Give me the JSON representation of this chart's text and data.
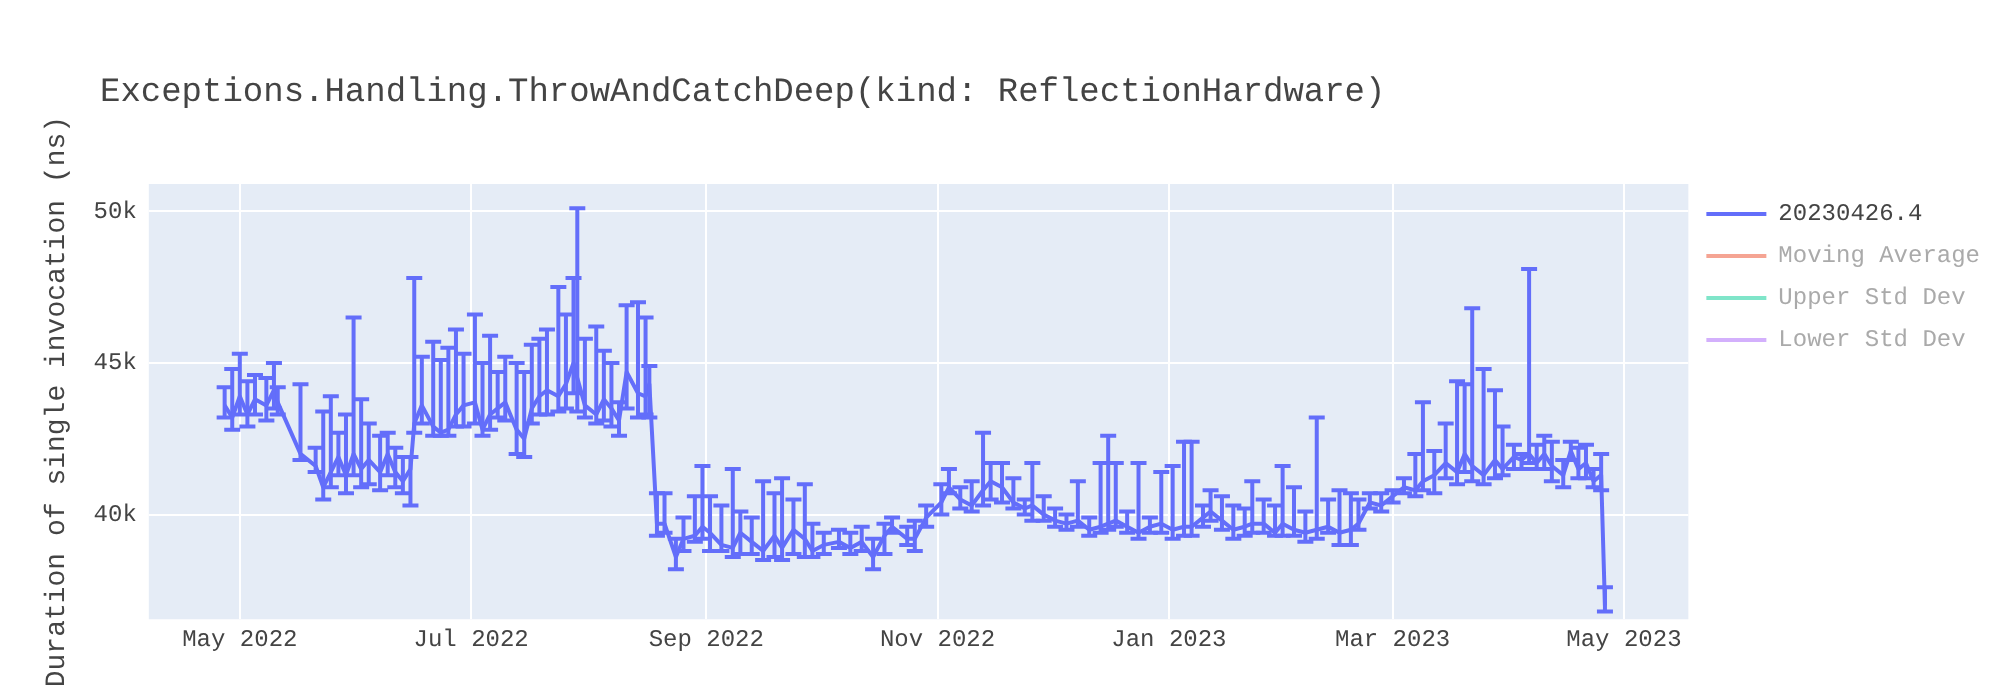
{
  "chart_data": {
    "type": "line",
    "title": "Exceptions.Handling.ThrowAndCatchDeep(kind: ReflectionHardware)",
    "ylabel": "Duration of single invocation (ns)",
    "xlim": [
      "2022-04-07",
      "2023-05-18"
    ],
    "ylim": [
      36550,
      50900
    ],
    "xticks": [
      {
        "value": "2022-05-01",
        "label": "May 2022"
      },
      {
        "value": "2022-07-01",
        "label": "Jul 2022"
      },
      {
        "value": "2022-09-01",
        "label": "Sep 2022"
      },
      {
        "value": "2022-11-01",
        "label": "Nov 2022"
      },
      {
        "value": "2023-01-01",
        "label": "Jan 2023"
      },
      {
        "value": "2023-03-01",
        "label": "Mar 2023"
      },
      {
        "value": "2023-05-01",
        "label": "May 2023"
      }
    ],
    "yticks": [
      {
        "value": 40000,
        "label": "40k"
      },
      {
        "value": 45000,
        "label": "45k"
      },
      {
        "value": 50000,
        "label": "50k"
      }
    ],
    "grid": true,
    "legend": "top right",
    "marker": "none",
    "line_style": "solid",
    "series": [
      {
        "name": "20230426.4",
        "color": "#636efa",
        "x": [
          "2022-04-27",
          "2022-04-29",
          "2022-05-01",
          "2022-05-03",
          "2022-05-05",
          "2022-05-08",
          "2022-05-10",
          "2022-05-11",
          "2022-05-17",
          "2022-05-21",
          "2022-05-23",
          "2022-05-25",
          "2022-05-27",
          "2022-05-29",
          "2022-05-31",
          "2022-06-02",
          "2022-06-04",
          "2022-06-07",
          "2022-06-09",
          "2022-06-11",
          "2022-06-13",
          "2022-06-15",
          "2022-06-16",
          "2022-06-18",
          "2022-06-21",
          "2022-06-23",
          "2022-06-25",
          "2022-06-27",
          "2022-06-29",
          "2022-07-02",
          "2022-07-04",
          "2022-07-06",
          "2022-07-08",
          "2022-07-10",
          "2022-07-13",
          "2022-07-15",
          "2022-07-17",
          "2022-07-19",
          "2022-07-21",
          "2022-07-24",
          "2022-07-26",
          "2022-07-28",
          "2022-07-29",
          "2022-07-31",
          "2022-08-03",
          "2022-08-05",
          "2022-08-07",
          "2022-08-09",
          "2022-08-11",
          "2022-08-14",
          "2022-08-16",
          "2022-08-17",
          "2022-08-19",
          "2022-08-21",
          "2022-08-24",
          "2022-08-26",
          "2022-08-29",
          "2022-08-31",
          "2022-09-02",
          "2022-09-05",
          "2022-09-08",
          "2022-09-10",
          "2022-09-13",
          "2022-09-16",
          "2022-09-19",
          "2022-09-21",
          "2022-09-24",
          "2022-09-27",
          "2022-09-29",
          "2022-10-02",
          "2022-10-06",
          "2022-10-09",
          "2022-10-12",
          "2022-10-15",
          "2022-10-18",
          "2022-10-20",
          "2022-10-24",
          "2022-10-26",
          "2022-10-29",
          "2022-11-02",
          "2022-11-04",
          "2022-11-07",
          "2022-11-10",
          "2022-11-13",
          "2022-11-15",
          "2022-11-18",
          "2022-11-21",
          "2022-11-24",
          "2022-11-26",
          "2022-11-29",
          "2022-12-02",
          "2022-12-05",
          "2022-12-08",
          "2022-12-11",
          "2022-12-14",
          "2022-12-16",
          "2022-12-18",
          "2022-12-21",
          "2022-12-24",
          "2022-12-27",
          "2022-12-30",
          "2023-01-02",
          "2023-01-05",
          "2023-01-07",
          "2023-01-10",
          "2023-01-12",
          "2023-01-15",
          "2023-01-18",
          "2023-01-21",
          "2023-01-23",
          "2023-01-26",
          "2023-01-29",
          "2023-01-31",
          "2023-02-03",
          "2023-02-06",
          "2023-02-09",
          "2023-02-12",
          "2023-02-15",
          "2023-02-18",
          "2023-02-20",
          "2023-02-23",
          "2023-02-26",
          "2023-03-01",
          "2023-03-04",
          "2023-03-07",
          "2023-03-09",
          "2023-03-12",
          "2023-03-15",
          "2023-03-18",
          "2023-03-20",
          "2023-03-22",
          "2023-03-25",
          "2023-03-28",
          "2023-03-30",
          "2023-04-02",
          "2023-04-04",
          "2023-04-06",
          "2023-04-08",
          "2023-04-10",
          "2023-04-12",
          "2023-04-15",
          "2023-04-17",
          "2023-04-19",
          "2023-04-21",
          "2023-04-23",
          "2023-04-25",
          "2023-04-26"
        ],
        "values": [
          43600,
          43200,
          43900,
          43300,
          43800,
          43600,
          44100,
          43700,
          42000,
          41600,
          40900,
          41400,
          41900,
          41300,
          42000,
          41500,
          41800,
          41400,
          42000,
          41400,
          41100,
          41500,
          43000,
          43600,
          42900,
          42700,
          42800,
          43300,
          43600,
          43700,
          42800,
          43300,
          43500,
          43700,
          42800,
          42500,
          43500,
          43900,
          44100,
          43900,
          44300,
          45000,
          44500,
          43600,
          43300,
          43800,
          43500,
          43100,
          44700,
          44000,
          43900,
          44300,
          39700,
          39700,
          38600,
          39200,
          39300,
          39600,
          39400,
          39000,
          38900,
          39400,
          39100,
          38800,
          39300,
          38900,
          39500,
          39200,
          38800,
          39000,
          39100,
          38900,
          39100,
          38600,
          39300,
          39600,
          39200,
          39200,
          39900,
          40400,
          40900,
          40500,
          40300,
          40800,
          41100,
          40900,
          40400,
          40200,
          40300,
          40000,
          39800,
          39700,
          39800,
          39500,
          39600,
          39700,
          39800,
          39600,
          39400,
          39600,
          39700,
          39500,
          39600,
          39600,
          39900,
          40100,
          39800,
          39500,
          39600,
          39700,
          39700,
          39400,
          39700,
          39500,
          39400,
          39500,
          39600,
          39400,
          39500,
          39700,
          40400,
          40300,
          40600,
          40900,
          40800,
          41100,
          41300,
          41700,
          41400,
          42000,
          41600,
          41300,
          41800,
          41500,
          41900,
          41800,
          42000,
          41700,
          42000,
          41600,
          41300,
          42100,
          41500,
          41700,
          41100,
          41300,
          37000
        ],
        "errors": [
          [
            43200,
            44200
          ],
          [
            42800,
            44800
          ],
          [
            43300,
            45300
          ],
          [
            42900,
            44400
          ],
          [
            43300,
            44600
          ],
          [
            43100,
            44500
          ],
          [
            43500,
            45000
          ],
          [
            43300,
            44200
          ],
          [
            41800,
            44300
          ],
          [
            41400,
            42200
          ],
          [
            40500,
            43400
          ],
          [
            40900,
            43900
          ],
          [
            41300,
            42700
          ],
          [
            40700,
            43300
          ],
          [
            41300,
            46500
          ],
          [
            40900,
            43800
          ],
          [
            41000,
            43000
          ],
          [
            40800,
            42600
          ],
          [
            41300,
            42700
          ],
          [
            40900,
            42200
          ],
          [
            40700,
            41900
          ],
          [
            40300,
            41900
          ],
          [
            42700,
            47800
          ],
          [
            43000,
            45200
          ],
          [
            42600,
            45700
          ],
          [
            42600,
            45100
          ],
          [
            42600,
            45500
          ],
          [
            42900,
            46100
          ],
          [
            42900,
            45300
          ],
          [
            43000,
            46600
          ],
          [
            42600,
            45000
          ],
          [
            42800,
            45900
          ],
          [
            43200,
            44700
          ],
          [
            43100,
            45200
          ],
          [
            42000,
            45000
          ],
          [
            41900,
            44700
          ],
          [
            43000,
            45600
          ],
          [
            43300,
            45800
          ],
          [
            43300,
            46100
          ],
          [
            43400,
            47500
          ],
          [
            43500,
            46600
          ],
          [
            44000,
            47800
          ],
          [
            43400,
            50100
          ],
          [
            43200,
            45800
          ],
          [
            43000,
            46200
          ],
          [
            43100,
            45400
          ],
          [
            42900,
            45000
          ],
          [
            42600,
            43700
          ],
          [
            43500,
            46900
          ],
          [
            43200,
            47000
          ],
          [
            43300,
            46500
          ],
          [
            43200,
            44900
          ],
          [
            39300,
            40700
          ],
          [
            39400,
            40700
          ],
          [
            38200,
            39200
          ],
          [
            38800,
            39900
          ],
          [
            39100,
            40600
          ],
          [
            39200,
            41600
          ],
          [
            38800,
            40600
          ],
          [
            38800,
            40300
          ],
          [
            38600,
            41500
          ],
          [
            38700,
            40100
          ],
          [
            38700,
            39900
          ],
          [
            38500,
            41100
          ],
          [
            38600,
            40700
          ],
          [
            38500,
            41200
          ],
          [
            38700,
            40500
          ],
          [
            38600,
            41000
          ],
          [
            38600,
            39700
          ],
          [
            38700,
            39400
          ],
          [
            38900,
            39500
          ],
          [
            38700,
            39400
          ],
          [
            38800,
            39600
          ],
          [
            38200,
            39200
          ],
          [
            38700,
            39700
          ],
          [
            39400,
            39900
          ],
          [
            39000,
            39600
          ],
          [
            38800,
            39800
          ],
          [
            39600,
            40300
          ],
          [
            40000,
            41000
          ],
          [
            40700,
            41500
          ],
          [
            40200,
            40900
          ],
          [
            40100,
            41100
          ],
          [
            40300,
            42700
          ],
          [
            40500,
            41700
          ],
          [
            40400,
            41700
          ],
          [
            40200,
            41200
          ],
          [
            40000,
            40500
          ],
          [
            39800,
            41700
          ],
          [
            39800,
            40600
          ],
          [
            39600,
            40200
          ],
          [
            39500,
            40000
          ],
          [
            39600,
            41100
          ],
          [
            39300,
            39900
          ],
          [
            39400,
            41700
          ],
          [
            39500,
            42600
          ],
          [
            39600,
            41700
          ],
          [
            39400,
            40100
          ],
          [
            39200,
            41700
          ],
          [
            39400,
            39900
          ],
          [
            39400,
            41400
          ],
          [
            39200,
            41600
          ],
          [
            39300,
            42400
          ],
          [
            39300,
            42400
          ],
          [
            39600,
            40300
          ],
          [
            39800,
            40800
          ],
          [
            39500,
            40600
          ],
          [
            39200,
            40300
          ],
          [
            39300,
            40200
          ],
          [
            39400,
            41100
          ],
          [
            39400,
            40500
          ],
          [
            39300,
            40300
          ],
          [
            39300,
            41600
          ],
          [
            39300,
            40900
          ],
          [
            39100,
            40100
          ],
          [
            39200,
            43200
          ],
          [
            39400,
            40500
          ],
          [
            39000,
            40800
          ],
          [
            39000,
            40700
          ],
          [
            39500,
            40500
          ],
          [
            40200,
            40700
          ],
          [
            40100,
            40700
          ],
          [
            40400,
            40800
          ],
          [
            40700,
            41200
          ],
          [
            40600,
            42000
          ],
          [
            40800,
            43700
          ],
          [
            40700,
            42100
          ],
          [
            41200,
            43000
          ],
          [
            41000,
            44400
          ],
          [
            41400,
            44300
          ],
          [
            41100,
            46800
          ],
          [
            41000,
            44800
          ],
          [
            41200,
            44100
          ],
          [
            41300,
            42900
          ],
          [
            41500,
            42300
          ],
          [
            41500,
            42000
          ],
          [
            41700,
            48100
          ],
          [
            41500,
            42300
          ],
          [
            41500,
            42600
          ],
          [
            41100,
            42400
          ],
          [
            40900,
            41800
          ],
          [
            41800,
            42400
          ],
          [
            41200,
            42200
          ],
          [
            41200,
            42300
          ],
          [
            40900,
            41500
          ],
          [
            40800,
            42000
          ],
          [
            36800,
            37600
          ]
        ]
      },
      {
        "name": "Moving Average",
        "color": "#f5a493"
      },
      {
        "name": "Upper Std Dev",
        "color": "#7fe5c9"
      },
      {
        "name": "Lower Std Dev",
        "color": "#d3b0fc"
      }
    ]
  }
}
